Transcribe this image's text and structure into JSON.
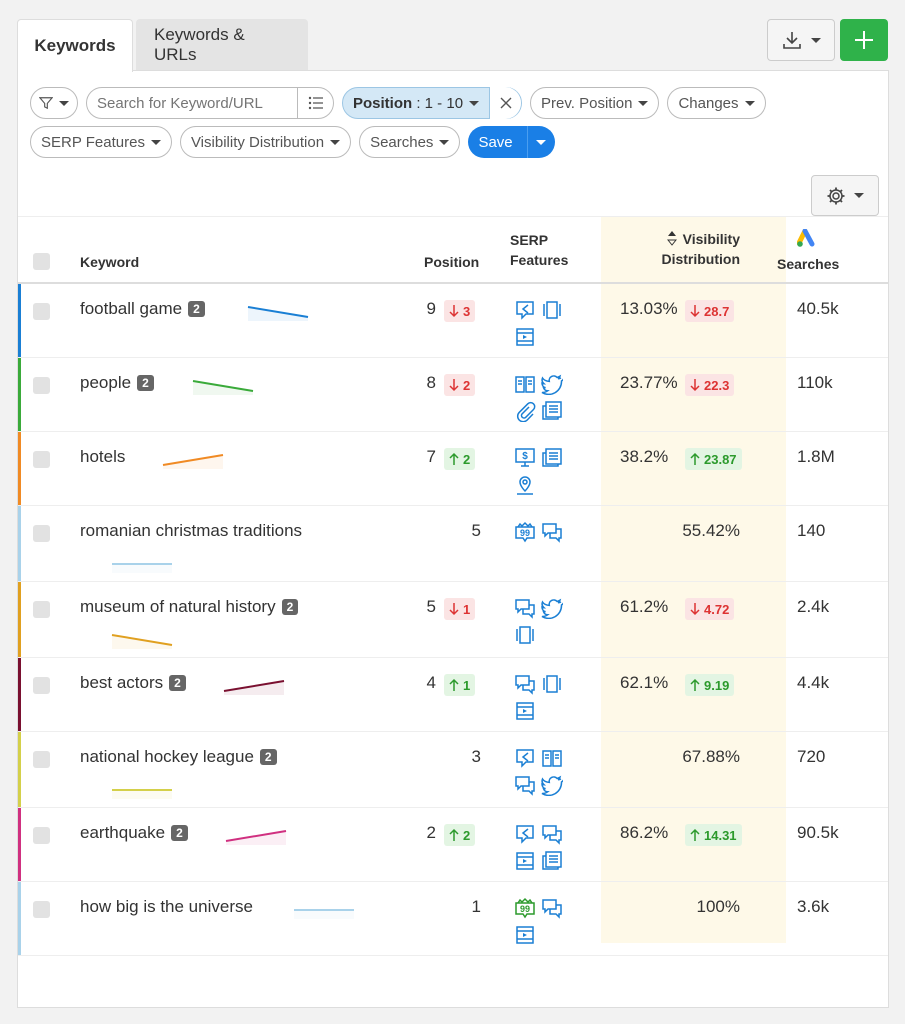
{
  "tabs": [
    {
      "label": "Keywords",
      "active": true
    },
    {
      "label": "Keywords & URLs",
      "active": false
    }
  ],
  "filters": {
    "search_placeholder": "Search for Keyword/URL",
    "position_label": "Position",
    "position_value": " : 1 - 10",
    "prev_position": "Prev. Position",
    "changes": "Changes",
    "serp_features": "SERP Features",
    "visibility_distribution": "Visibility Distribution",
    "searches": "Searches",
    "save": "Save"
  },
  "table": {
    "headers": {
      "keyword": "Keyword",
      "position": "Position",
      "serp_line1": "SERP",
      "serp_line2": "Features",
      "vis_line1": "Visibility",
      "vis_line2": "Distribution",
      "searches": "Searches"
    },
    "rows": [
      {
        "keyword": "football game",
        "badge": "2",
        "color": "#1a7fd4",
        "position": "9",
        "change_dir": "down",
        "change": "3",
        "features": [
          "featured-snippet-icon",
          "carousel-icon",
          "video-icon"
        ],
        "visibility": "13.03%",
        "vis_dir": "down",
        "vis_change": "28.7",
        "searches": "40.5k",
        "trend": "down"
      },
      {
        "keyword": "people",
        "badge": "2",
        "color": "#3aaa3a",
        "position": "8",
        "change_dir": "down",
        "change": "2",
        "features": [
          "knowledge-panel-icon",
          "twitter-icon",
          "sitelinks-icon",
          "news-icon"
        ],
        "visibility": "23.77%",
        "vis_dir": "down",
        "vis_change": "22.3",
        "searches": "110k",
        "trend": "down"
      },
      {
        "keyword": "hotels",
        "badge": "",
        "color": "#f08a24",
        "position": "7",
        "change_dir": "up",
        "change": "2",
        "features": [
          "ads-icon",
          "news-icon",
          "local-pack-icon"
        ],
        "visibility": "38.2%",
        "vis_dir": "up",
        "vis_change": "23.87",
        "searches": "1.8M",
        "trend": "up"
      },
      {
        "keyword": "romanian christmas traditions",
        "badge": "",
        "color": "#a9d2ea",
        "position": "5",
        "change_dir": "",
        "change": "",
        "features": [
          "reviews-icon",
          "questions-icon"
        ],
        "visibility": "55.42%",
        "vis_dir": "",
        "vis_change": "",
        "searches": "140",
        "trend": "flat"
      },
      {
        "keyword": "museum of natural history",
        "badge": "2",
        "color": "#e0a020",
        "position": "5",
        "change_dir": "down",
        "change": "1",
        "features": [
          "questions-icon",
          "twitter-icon",
          "carousel-icon"
        ],
        "visibility": "61.2%",
        "vis_dir": "down",
        "vis_change": "4.72",
        "searches": "2.4k",
        "trend": "down"
      },
      {
        "keyword": "best actors",
        "badge": "2",
        "color": "#7a1030",
        "position": "4",
        "change_dir": "up",
        "change": "1",
        "features": [
          "questions-icon",
          "carousel-icon",
          "video-icon"
        ],
        "visibility": "62.1%",
        "vis_dir": "up",
        "vis_change": "9.19",
        "searches": "4.4k",
        "trend": "up"
      },
      {
        "keyword": "national hockey league",
        "badge": "2",
        "color": "#d4d04a",
        "position": "3",
        "change_dir": "",
        "change": "",
        "features": [
          "featured-snippet-icon",
          "knowledge-panel-icon",
          "questions-icon",
          "twitter-icon"
        ],
        "visibility": "67.88%",
        "vis_dir": "",
        "vis_change": "",
        "searches": "720",
        "trend": "flat"
      },
      {
        "keyword": "earthquake",
        "badge": "2",
        "color": "#d03080",
        "position": "2",
        "change_dir": "up",
        "change": "2",
        "features": [
          "featured-snippet-icon",
          "questions-icon",
          "video-icon",
          "news-icon"
        ],
        "visibility": "86.2%",
        "vis_dir": "up",
        "vis_change": "14.31",
        "searches": "90.5k",
        "trend": "up"
      },
      {
        "keyword": "how big is the universe",
        "badge": "",
        "color": "#a9d2ea",
        "position": "1",
        "change_dir": "",
        "change": "",
        "features": [
          "reviews-green-icon",
          "questions-icon",
          "video-icon"
        ],
        "visibility": "100%",
        "vis_dir": "",
        "vis_change": "",
        "searches": "3.6k",
        "trend": "flat"
      }
    ]
  }
}
